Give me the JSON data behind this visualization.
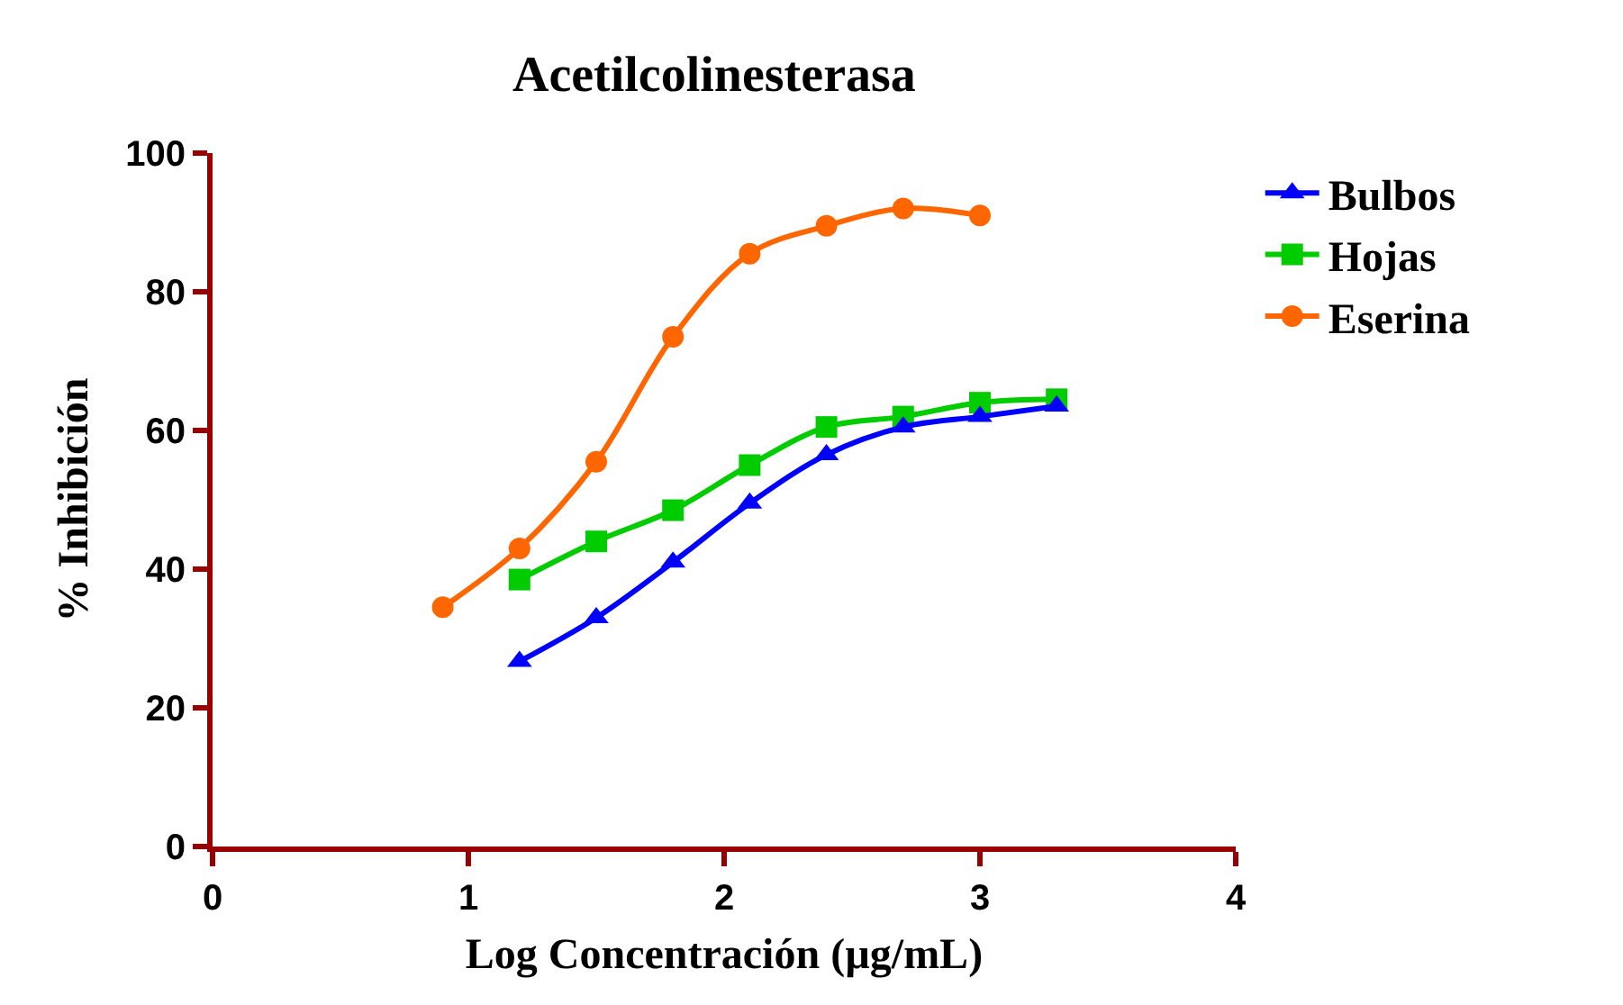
{
  "chart_data": {
    "type": "line",
    "title": "Acetilcolinesterasa",
    "xlabel": "Log Concentración (µg/mL)",
    "ylabel": "% Inhibición",
    "xlim": [
      0,
      4
    ],
    "xticks": [
      0,
      1,
      2,
      3,
      4
    ],
    "ylim": [
      0,
      100
    ],
    "yticks": [
      0,
      20,
      40,
      60,
      80,
      100
    ],
    "grid": false,
    "legend": "top right",
    "line_style": "solid",
    "series": [
      {
        "name": "Bulbos",
        "color": "#0000ff",
        "marker": "triangle",
        "x": [
          1.2,
          1.5,
          1.8,
          2.1,
          2.4,
          2.7,
          3.0,
          3.3
        ],
        "values": [
          26.7,
          33,
          41,
          49.5,
          56.5,
          60.5,
          62,
          63.5
        ]
      },
      {
        "name": "Hojas",
        "color": "#00cc00",
        "marker": "square",
        "x": [
          1.2,
          1.5,
          1.8,
          2.1,
          2.4,
          2.7,
          3.0,
          3.3
        ],
        "values": [
          38.5,
          44,
          48.5,
          55,
          60.5,
          62,
          64,
          64.5
        ]
      },
      {
        "name": "Eserina",
        "color": "#ff6600",
        "marker": "circle",
        "x": [
          0.9,
          1.2,
          1.5,
          1.8,
          2.1,
          2.4,
          2.7,
          3.0
        ],
        "values": [
          34.5,
          43,
          55.5,
          73.5,
          85.5,
          89.5,
          92,
          91
        ]
      }
    ]
  }
}
